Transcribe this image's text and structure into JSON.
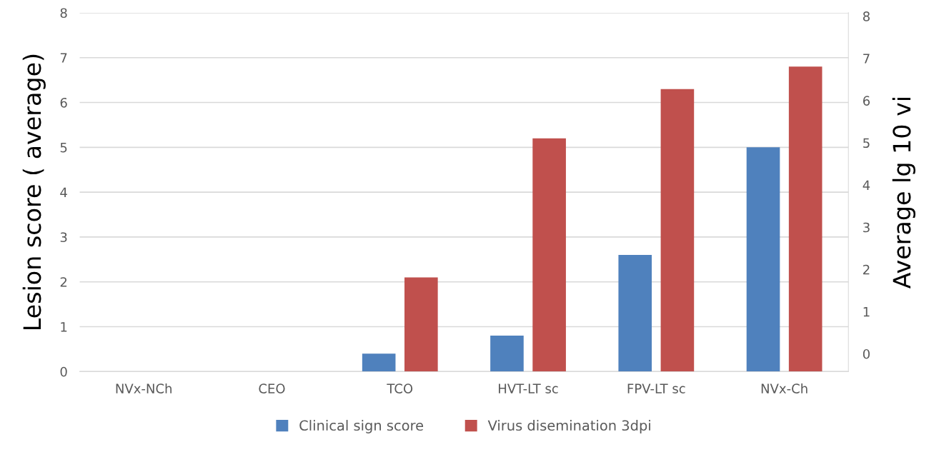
{
  "chart_data": {
    "type": "bar",
    "ylabel": "Lesion score ( average)",
    "y2label": "Average lg 10 vi",
    "categories": [
      "NVx-NCh",
      "CEO",
      "TCO",
      "HVT-LT sc",
      "FPV-LT sc",
      "NVx-Ch"
    ],
    "series": [
      {
        "name": "Clinical sign score",
        "color": "#4f81bd",
        "values": [
          0,
          0,
          0.4,
          0.8,
          2.6,
          5.0
        ]
      },
      {
        "name": "Virus disemination 3dpi",
        "color": "#c0504d",
        "values": [
          0,
          0,
          2.1,
          5.2,
          6.3,
          6.8
        ]
      }
    ],
    "ylim": [
      0,
      8
    ],
    "yticks": [
      0,
      1,
      2,
      3,
      4,
      5,
      6,
      7,
      8
    ],
    "y2lim": [
      -0.42,
      8.08
    ],
    "y2ticks": [
      0,
      1,
      2,
      3,
      4,
      5,
      6,
      7,
      8
    ],
    "grid": "y",
    "legend": "bottom"
  }
}
